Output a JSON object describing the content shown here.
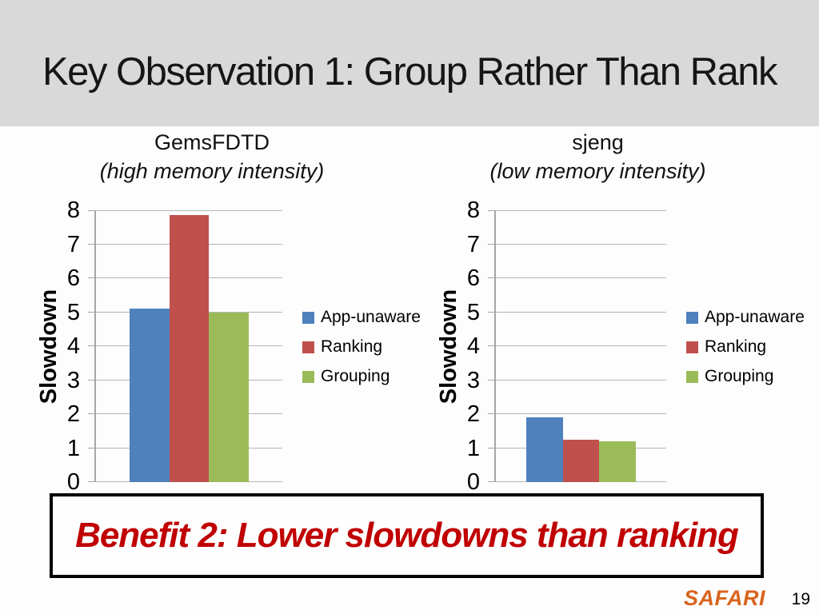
{
  "slide": {
    "title": "Key Observation 1: Group Rather Than Rank",
    "callout": "Benefit 2: Lower slowdowns than ranking",
    "logo": "SAFARI",
    "page_number": "19"
  },
  "colors": {
    "header_band": "#d9d9d9",
    "app_unaware_blue": "#4f81bd",
    "ranking_red": "#c0504d",
    "grouping_green": "#9bbb59",
    "callout_text_red": "#c00000",
    "logo_orange": "#d9641e"
  },
  "chart_data": [
    {
      "type": "bar",
      "title": "GemsFDTD",
      "subtitle": "(high memory intensity)",
      "xlabel": "",
      "ylabel": "Slowdown",
      "ylim": [
        0,
        8
      ],
      "ytick_step": 1,
      "grid": true,
      "legend_position": "right",
      "categories": [
        "GemsFDTD"
      ],
      "series": [
        {
          "name": "App-unaware",
          "color": "#4f81bd",
          "values": [
            5.1
          ]
        },
        {
          "name": "Ranking",
          "color": "#c0504d",
          "values": [
            7.85
          ]
        },
        {
          "name": "Grouping",
          "color": "#9bbb59",
          "values": [
            5.0
          ]
        }
      ]
    },
    {
      "type": "bar",
      "title": "sjeng",
      "subtitle": "(low memory intensity)",
      "xlabel": "",
      "ylabel": "Slowdown",
      "ylim": [
        0,
        8
      ],
      "ytick_step": 1,
      "grid": true,
      "legend_position": "right",
      "categories": [
        "sjeng"
      ],
      "series": [
        {
          "name": "App-unaware",
          "color": "#4f81bd",
          "values": [
            1.9
          ]
        },
        {
          "name": "Ranking",
          "color": "#c0504d",
          "values": [
            1.25
          ]
        },
        {
          "name": "Grouping",
          "color": "#9bbb59",
          "values": [
            1.2
          ]
        }
      ]
    }
  ]
}
